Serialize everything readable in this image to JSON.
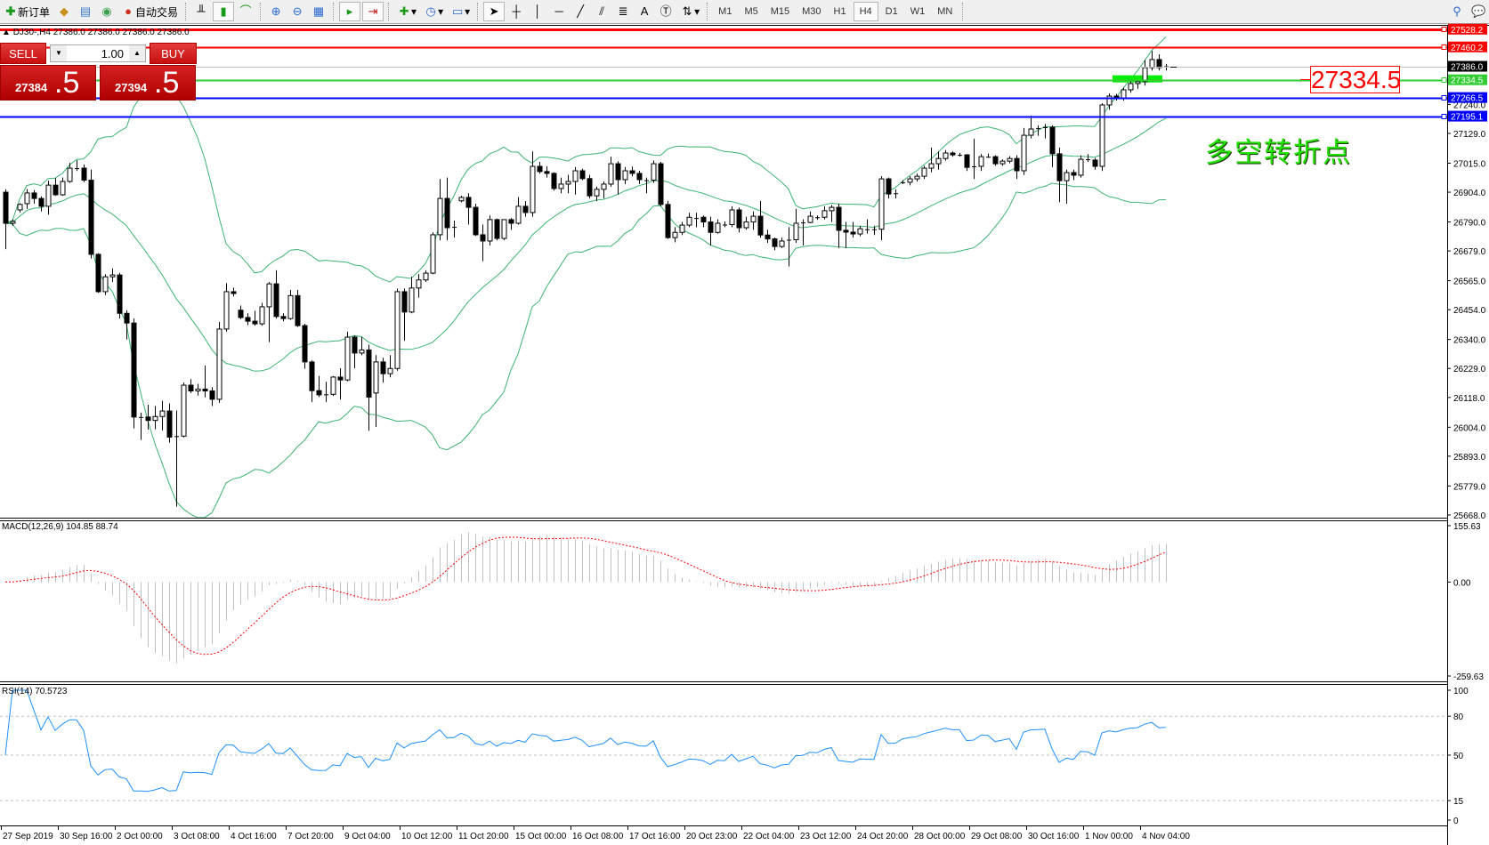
{
  "toolbar": {
    "new_order": "新订单",
    "auto_trading": "自动交易",
    "timeframes": [
      "M1",
      "M5",
      "M15",
      "M30",
      "H1",
      "H4",
      "D1",
      "W1",
      "MN"
    ],
    "active_timeframe": "H4",
    "icons": [
      "new-order-icon",
      "market-watch-icon",
      "navigator-icon",
      "terminal-icon",
      "auto-trading-icon",
      "bar-chart-icon",
      "candlestick-icon",
      "line-chart-icon",
      "zoom-in-icon",
      "zoom-out-icon",
      "tile-windows-icon",
      "auto-scroll-icon",
      "chart-shift-icon",
      "indicators-icon",
      "periods-icon",
      "templates-icon",
      "cursor-icon",
      "crosshair-icon",
      "vertical-line-icon",
      "horizontal-line-icon",
      "trendline-icon",
      "equidistant-channel-icon",
      "fibonacci-icon",
      "text-icon",
      "text-label-icon",
      "arrows-icon",
      "search-icon",
      "chat-icon"
    ]
  },
  "chart_header": {
    "symbol": "DJ30-,H4",
    "ohlc": "27386.0 27386.0 27386.0 27386.0"
  },
  "trade_panel": {
    "sell": "SELL",
    "buy": "BUY",
    "volume": "1.00",
    "sell_price_main": "27384",
    "sell_price_frac": ".5",
    "buy_price_main": "27394",
    "buy_price_frac": ".5"
  },
  "annotation": {
    "text": "多空转折点",
    "price_label": "27334.5"
  },
  "chart_data": {
    "type": "candlestick",
    "symbol": "DJ30-",
    "timeframe": "H4",
    "ylim": [
      25668.0,
      27560.0
    ],
    "current_price": 27386.0,
    "price_ticks": [
      "27240.0",
      "27129.0",
      "27015.0",
      "26904.0",
      "26790.0",
      "26679.0",
      "26565.0",
      "26454.0",
      "26340.0",
      "26229.0",
      "26118.0",
      "26004.0",
      "25893.0",
      "25779.0",
      "25668.0"
    ],
    "x_ticks": [
      {
        "label": "27 Sep 2019",
        "bar": 0
      },
      {
        "label": "30 Sep 16:00",
        "bar": 8
      },
      {
        "label": "2 Oct 00:00",
        "bar": 16
      },
      {
        "label": "3 Oct 08:00",
        "bar": 24
      },
      {
        "label": "4 Oct 16:00",
        "bar": 32
      },
      {
        "label": "7 Oct 20:00",
        "bar": 40
      },
      {
        "label": "9 Oct 04:00",
        "bar": 48
      },
      {
        "label": "10 Oct 12:00",
        "bar": 56
      },
      {
        "label": "11 Oct 20:00",
        "bar": 64
      },
      {
        "label": "15 Oct 00:00",
        "bar": 72
      },
      {
        "label": "16 Oct 08:00",
        "bar": 80
      },
      {
        "label": "17 Oct 16:00",
        "bar": 88
      },
      {
        "label": "20 Oct 23:00",
        "bar": 96
      },
      {
        "label": "22 Oct 04:00",
        "bar": 104
      },
      {
        "label": "23 Oct 12:00",
        "bar": 112
      },
      {
        "label": "24 Oct 20:00",
        "bar": 120
      },
      {
        "label": "28 Oct 00:00",
        "bar": 128
      },
      {
        "label": "29 Oct 08:00",
        "bar": 136
      },
      {
        "label": "30 Oct 16:00",
        "bar": 144
      },
      {
        "label": "1 Nov 00:00",
        "bar": 152
      },
      {
        "label": "4 Nov 04:00",
        "bar": 160
      }
    ],
    "horizontal_lines": [
      {
        "price": 27528.2,
        "label": "27528.2",
        "color": "#ff0000",
        "width": 3
      },
      {
        "price": 27460.2,
        "label": "27460.2",
        "color": "#ff0000",
        "width": 2
      },
      {
        "price": 27386.0,
        "label": "27386.0",
        "color": "#c0c0c0",
        "width": 1,
        "label_bg": "#000000"
      },
      {
        "price": 27334.5,
        "label": "27334.5",
        "color": "#32cd32",
        "width": 2
      },
      {
        "price": 27266.5,
        "label": "27266.5",
        "color": "#0000ff",
        "width": 2
      },
      {
        "price": 27195.1,
        "label": "27195.1",
        "color": "#0000ff",
        "width": 2
      }
    ],
    "zone": {
      "price": 27334.5,
      "from_bar": 156,
      "to_bar": 162,
      "color": "#00ee00"
    },
    "candles": [
      [
        26904,
        26915,
        26686,
        26785
      ],
      [
        26785,
        26800,
        26775,
        26792
      ],
      [
        26836,
        26862,
        26826,
        26857
      ],
      [
        26860,
        26916,
        26840,
        26901
      ],
      [
        26901,
        26912,
        26860,
        26880
      ],
      [
        26880,
        26888,
        26830,
        26850
      ],
      [
        26850,
        26948,
        26818,
        26931
      ],
      [
        26931,
        26958,
        26890,
        26894
      ],
      [
        26894,
        26960,
        26890,
        26945
      ],
      [
        26945,
        27016,
        26940,
        26996
      ],
      [
        26996,
        27026,
        26985,
        26996
      ],
      [
        26996,
        27010,
        26943,
        26950
      ],
      [
        26950,
        26990,
        26650,
        26666
      ],
      [
        26666,
        26670,
        26518,
        26523
      ],
      [
        26523,
        26590,
        26510,
        26580
      ],
      [
        26580,
        26612,
        26560,
        26587
      ],
      [
        26587,
        26595,
        26420,
        26440
      ],
      [
        26440,
        26452,
        26340,
        26403
      ],
      [
        26403,
        26420,
        26000,
        26043
      ],
      [
        26043,
        26060,
        25955,
        26043
      ],
      [
        26043,
        26090,
        25995,
        26030
      ],
      [
        26030,
        26085,
        25996,
        26045
      ],
      [
        26045,
        26105,
        25992,
        26066
      ],
      [
        26066,
        26095,
        25945,
        25966
      ],
      [
        25966,
        26068,
        25700,
        25970
      ],
      [
        25970,
        26175,
        25965,
        26165
      ],
      [
        26165,
        26188,
        26135,
        26143
      ],
      [
        26143,
        26170,
        26125,
        26150
      ],
      [
        26150,
        26240,
        26118,
        26143
      ],
      [
        26143,
        26157,
        26085,
        26111
      ],
      [
        26111,
        26407,
        26098,
        26380
      ],
      [
        26380,
        26555,
        26370,
        26523
      ],
      [
        26523,
        26538,
        26505,
        26516
      ],
      [
        26452,
        26470,
        26418,
        26424
      ],
      [
        26424,
        26440,
        26395,
        26410
      ],
      [
        26410,
        26450,
        26393,
        26400
      ],
      [
        26400,
        26480,
        26393,
        26465
      ],
      [
        26465,
        26560,
        26330,
        26553
      ],
      [
        26553,
        26605,
        26420,
        26428
      ],
      [
        26428,
        26440,
        26410,
        26420
      ],
      [
        26420,
        26530,
        26415,
        26508
      ],
      [
        26508,
        26530,
        26388,
        26393
      ],
      [
        26393,
        26400,
        26228,
        26254
      ],
      [
        26254,
        26260,
        26100,
        26144
      ],
      [
        26144,
        26200,
        26120,
        26128
      ],
      [
        26130,
        26178,
        26100,
        26130
      ],
      [
        26130,
        26200,
        26124,
        26196
      ],
      [
        26196,
        26230,
        26110,
        26185
      ],
      [
        26185,
        26370,
        26180,
        26349
      ],
      [
        26349,
        26355,
        26230,
        26288
      ],
      [
        26288,
        26350,
        26280,
        26300
      ],
      [
        26300,
        26320,
        25990,
        26119
      ],
      [
        26135,
        26280,
        26005,
        26254
      ],
      [
        26254,
        26270,
        26175,
        26209
      ],
      [
        26209,
        26280,
        26195,
        26229
      ],
      [
        26229,
        26535,
        26220,
        26523
      ],
      [
        26523,
        26535,
        26335,
        26445
      ],
      [
        26445,
        26580,
        26440,
        26537
      ],
      [
        26537,
        26590,
        26500,
        26568
      ],
      [
        26568,
        26605,
        26560,
        26594
      ],
      [
        26594,
        26750,
        26590,
        26741
      ],
      [
        26741,
        26955,
        26720,
        26880
      ],
      [
        26880,
        26960,
        26720,
        26768
      ],
      [
        26768,
        26795,
        26730,
        26771
      ],
      [
        26871,
        26890,
        26865,
        26884
      ],
      [
        26884,
        26900,
        26780,
        26846
      ],
      [
        26846,
        26860,
        26736,
        26741
      ],
      [
        26741,
        26780,
        26640,
        26717
      ],
      [
        26717,
        26815,
        26700,
        26799
      ],
      [
        26799,
        26803,
        26720,
        26727
      ],
      [
        26727,
        26800,
        26720,
        26799
      ],
      [
        26799,
        26805,
        26760,
        26785
      ],
      [
        26785,
        26885,
        26780,
        26850
      ],
      [
        26850,
        26870,
        26810,
        26826
      ],
      [
        26826,
        27060,
        26810,
        27003
      ],
      [
        27003,
        27020,
        26975,
        26983
      ],
      [
        26983,
        27003,
        26960,
        26976
      ],
      [
        26976,
        26980,
        26910,
        26918
      ],
      [
        26918,
        26960,
        26900,
        26935
      ],
      [
        26935,
        26970,
        26900,
        26945
      ],
      [
        26945,
        27000,
        26895,
        26986
      ],
      [
        26986,
        26994,
        26950,
        26956
      ],
      [
        26956,
        26970,
        26880,
        26890
      ],
      [
        26890,
        26925,
        26870,
        26915
      ],
      [
        26915,
        26945,
        26880,
        26935
      ],
      [
        26935,
        27040,
        26925,
        27013
      ],
      [
        27013,
        27022,
        26895,
        26952
      ],
      [
        26952,
        27000,
        26935,
        26986
      ],
      [
        26986,
        27002,
        26965,
        26976
      ],
      [
        26976,
        26986,
        26935,
        26952
      ],
      [
        26950,
        26960,
        26900,
        26950
      ],
      [
        26950,
        27025,
        26940,
        27013
      ],
      [
        27013,
        27020,
        26850,
        26857
      ],
      [
        26857,
        26870,
        26725,
        26730
      ],
      [
        26730,
        26770,
        26712,
        26750
      ],
      [
        26750,
        26790,
        26740,
        26778
      ],
      [
        26778,
        26825,
        26770,
        26808
      ],
      [
        26805,
        26825,
        26770,
        26805
      ],
      [
        26808,
        26815,
        26770,
        26790
      ],
      [
        26790,
        26810,
        26700,
        26750
      ],
      [
        26750,
        26800,
        26745,
        26785
      ],
      [
        26780,
        26792,
        26770,
        26780
      ],
      [
        26780,
        26850,
        26770,
        26836
      ],
      [
        26836,
        26845,
        26750,
        26768
      ],
      [
        26768,
        26810,
        26760,
        26790
      ],
      [
        26790,
        26830,
        26760,
        26812
      ],
      [
        26812,
        26870,
        26730,
        26740
      ],
      [
        26740,
        26760,
        26710,
        26725
      ],
      [
        26725,
        26730,
        26682,
        26696
      ],
      [
        26696,
        26730,
        26690,
        26717
      ],
      [
        26720,
        26770,
        26620,
        26722
      ],
      [
        26722,
        26840,
        26710,
        26785
      ],
      [
        26788,
        26800,
        26700,
        26788
      ],
      [
        26788,
        26830,
        26785,
        26812
      ],
      [
        26808,
        26815,
        26798,
        26808
      ],
      [
        26808,
        26850,
        26800,
        26833
      ],
      [
        26833,
        26855,
        26790,
        26846
      ],
      [
        26846,
        26860,
        26690,
        26758
      ],
      [
        26758,
        26790,
        26690,
        26751
      ],
      [
        26751,
        26790,
        26730,
        26744
      ],
      [
        26744,
        26775,
        26735,
        26764
      ],
      [
        26762,
        26800,
        26745,
        26762
      ],
      [
        26762,
        26775,
        26740,
        26762
      ],
      [
        26762,
        26965,
        26720,
        26955
      ],
      [
        26955,
        26960,
        26880,
        26897
      ],
      [
        26900,
        26915,
        26880,
        26900
      ],
      [
        26942,
        26950,
        26935,
        26942
      ],
      [
        26942,
        26965,
        26930,
        26955
      ],
      [
        26955,
        26975,
        26945,
        26965
      ],
      [
        26965,
        27005,
        26955,
        26996
      ],
      [
        26996,
        27075,
        26980,
        27013
      ],
      [
        27013,
        27060,
        26990,
        27033
      ],
      [
        27033,
        27065,
        27025,
        27054
      ],
      [
        27054,
        27060,
        27040,
        27047
      ],
      [
        27047,
        27055,
        27040,
        27047
      ],
      [
        27047,
        27050,
        26985,
        26999
      ],
      [
        27003,
        27109,
        26955,
        27003
      ],
      [
        27003,
        27050,
        26985,
        27040
      ],
      [
        27040,
        27052,
        27035,
        27040
      ],
      [
        27040,
        27045,
        27005,
        27013
      ],
      [
        27013,
        27030,
        27005,
        27023
      ],
      [
        27023,
        27042,
        27015,
        27033
      ],
      [
        27033,
        27045,
        26955,
        26986
      ],
      [
        26986,
        27150,
        26970,
        27122
      ],
      [
        27122,
        27197,
        27110,
        27146
      ],
      [
        27149,
        27160,
        27120,
        27149
      ],
      [
        27153,
        27165,
        27110,
        27153
      ],
      [
        27153,
        27160,
        27000,
        27051
      ],
      [
        27051,
        27075,
        26866,
        26948
      ],
      [
        26948,
        26990,
        26860,
        26979
      ],
      [
        26979,
        26990,
        26950,
        26969
      ],
      [
        26969,
        27045,
        26960,
        27030
      ],
      [
        27030,
        27050,
        27020,
        27027
      ],
      [
        27027,
        27035,
        26990,
        27003
      ],
      [
        27003,
        27245,
        26985,
        27238
      ],
      [
        27238,
        27282,
        27220,
        27272
      ],
      [
        27272,
        27280,
        27255,
        27264
      ],
      [
        27264,
        27305,
        27255,
        27296
      ],
      [
        27296,
        27330,
        27285,
        27320
      ],
      [
        27320,
        27335,
        27300,
        27327
      ],
      [
        27327,
        27410,
        27312,
        27381
      ],
      [
        27381,
        27445,
        27370,
        27412
      ],
      [
        27412,
        27432,
        27370,
        27381
      ],
      [
        27381,
        27395,
        27370,
        27386
      ]
    ],
    "indicators": {
      "bollinger": {
        "period": 20,
        "deviation": 2,
        "color": "#3cb371"
      },
      "macd": {
        "label": "MACD(12,26,9) 104.85 88.74",
        "ylim": [
          -259.63,
          155.63
        ],
        "ticks": [
          "155.63",
          "0.00",
          "-259.63"
        ],
        "histogram_color": "#c0c0c0",
        "signal_color": "#ff0000"
      },
      "rsi": {
        "label": "RSI(14) 70.5723",
        "period": 14,
        "ylim": [
          0,
          100
        ],
        "ticks": [
          "100",
          "80",
          "50",
          "15",
          "0"
        ],
        "levels": [
          80,
          50,
          15
        ],
        "color": "#1e90ff"
      }
    }
  }
}
